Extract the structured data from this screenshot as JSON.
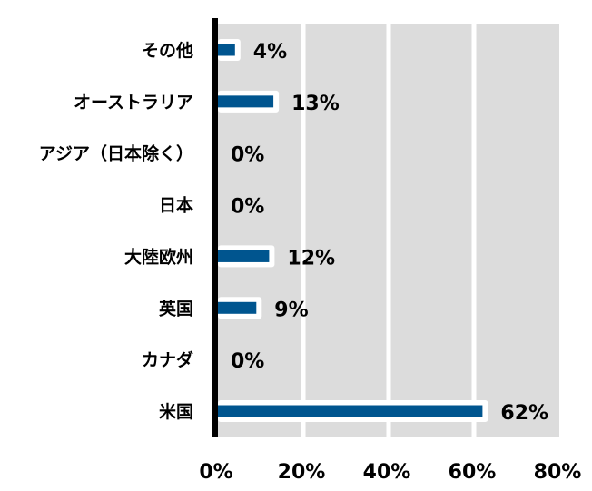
{
  "chart_data": {
    "type": "bar",
    "orientation": "horizontal",
    "categories": [
      "その他",
      "オーストラリア",
      "アジア（日本除く）",
      "日本",
      "大陸欧州",
      "英国",
      "カナダ",
      "米国"
    ],
    "values": [
      4,
      13,
      0,
      0,
      12,
      9,
      0,
      62
    ],
    "data_labels": [
      "4%",
      "13%",
      "0%",
      "0%",
      "12%",
      "9%",
      "0%",
      "62%"
    ],
    "xlim": [
      0,
      80
    ],
    "xticks": [
      0,
      20,
      40,
      60,
      80
    ],
    "xtick_labels": [
      "0%",
      "20%",
      "40%",
      "60%",
      "80%"
    ],
    "grid": true,
    "colors": {
      "bar": "#00558f",
      "background": "#dcdcdc",
      "grid": "#ffffff",
      "axis": "#000000"
    }
  }
}
